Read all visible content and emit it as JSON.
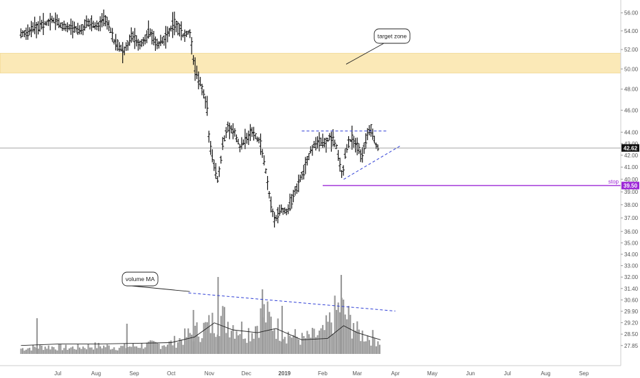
{
  "chart_data": {
    "type": "ohlc",
    "x_axis": {
      "labels": [
        "Jul",
        "Aug",
        "Sep",
        "Oct",
        "Nov",
        "Dec",
        "2019",
        "Feb",
        "Mar",
        "Apr",
        "May",
        "Jun",
        "Jul",
        "Aug",
        "Sep"
      ]
    },
    "y_axis": {
      "scale": "log",
      "ticks": [
        "56.00",
        "54.00",
        "52.00",
        "50.00",
        "48.00",
        "46.00",
        "44.00",
        "43.00",
        "42.00",
        "41.00",
        "40.00",
        "39.00",
        "38.00",
        "37.00",
        "36.00",
        "35.00",
        "34.00",
        "33.00",
        "32.00",
        "31.40",
        "30.60",
        "29.90",
        "29.20",
        "28.50",
        "27.85"
      ],
      "range": [
        27.6,
        57.0
      ]
    },
    "price_series": [
      [
        "2018-06-01",
        53.6
      ],
      [
        "2018-06-15",
        54.4
      ],
      [
        "2018-06-26",
        55.2
      ],
      [
        "2018-07-05",
        54.6
      ],
      [
        "2018-07-12",
        54.2
      ],
      [
        "2018-07-19",
        54.0
      ],
      [
        "2018-07-26",
        55.0
      ],
      [
        "2018-08-02",
        54.5
      ],
      [
        "2018-08-09",
        55.4
      ],
      [
        "2018-08-16",
        52.8
      ],
      [
        "2018-08-23",
        51.8
      ],
      [
        "2018-08-30",
        53.4
      ],
      [
        "2018-09-06",
        52.4
      ],
      [
        "2018-09-13",
        54.0
      ],
      [
        "2018-09-20",
        52.4
      ],
      [
        "2018-09-27",
        53.4
      ],
      [
        "2018-10-04",
        55.0
      ],
      [
        "2018-10-11",
        53.4
      ],
      [
        "2018-10-16",
        54.0
      ],
      [
        "2018-10-20",
        50.0
      ],
      [
        "2018-10-25",
        48.4
      ],
      [
        "2018-10-30",
        46.6
      ],
      [
        "2018-11-01",
        43.0
      ],
      [
        "2018-11-05",
        41.0
      ],
      [
        "2018-11-08",
        39.8
      ],
      [
        "2018-11-12",
        43.0
      ],
      [
        "2018-11-16",
        44.4
      ],
      [
        "2018-11-21",
        44.2
      ],
      [
        "2018-11-26",
        42.6
      ],
      [
        "2018-12-01",
        43.4
      ],
      [
        "2018-12-06",
        44.0
      ],
      [
        "2018-12-12",
        43.2
      ],
      [
        "2018-12-17",
        40.6
      ],
      [
        "2018-12-20",
        38.6
      ],
      [
        "2018-12-24",
        36.8
      ],
      [
        "2018-12-28",
        37.6
      ],
      [
        "2019-01-03",
        37.4
      ],
      [
        "2019-01-08",
        38.6
      ],
      [
        "2019-01-12",
        39.6
      ],
      [
        "2019-01-17",
        40.8
      ],
      [
        "2019-01-22",
        42.4
      ],
      [
        "2019-01-28",
        43.2
      ],
      [
        "2019-02-02",
        43.0
      ],
      [
        "2019-02-07",
        43.6
      ],
      [
        "2019-02-12",
        42.8
      ],
      [
        "2019-02-17",
        40.2
      ],
      [
        "2019-02-20",
        42.6
      ],
      [
        "2019-02-25",
        43.6
      ],
      [
        "2019-03-01",
        42.8
      ],
      [
        "2019-03-05",
        41.8
      ],
      [
        "2019-03-08",
        43.4
      ],
      [
        "2019-03-12",
        44.4
      ],
      [
        "2019-03-16",
        43.0
      ],
      [
        "2019-03-19",
        42.4
      ]
    ],
    "volume_bars": [
      [
        "2018-06-01",
        8
      ],
      [
        "2018-06-20",
        11
      ],
      [
        "2018-07-10",
        9
      ],
      [
        "2018-08-01",
        12
      ],
      [
        "2018-08-20",
        10
      ],
      [
        "2018-09-10",
        13
      ],
      [
        "2018-10-01",
        16
      ],
      [
        "2018-10-18",
        30
      ],
      [
        "2018-11-01",
        42
      ],
      [
        "2018-11-10",
        55
      ],
      [
        "2018-11-25",
        38
      ],
      [
        "2018-12-05",
        33
      ],
      [
        "2018-12-15",
        60
      ],
      [
        "2018-12-28",
        35
      ],
      [
        "2019-01-15",
        22
      ],
      [
        "2019-02-01",
        30
      ],
      [
        "2019-02-15",
        70
      ],
      [
        "2019-03-01",
        32
      ],
      [
        "2019-03-20",
        20
      ]
    ],
    "volume_ma": [
      [
        "2018-06-01",
        12
      ],
      [
        "2018-07-01",
        14
      ],
      [
        "2018-08-01",
        14
      ],
      [
        "2018-09-01",
        15
      ],
      [
        "2018-10-01",
        16
      ],
      [
        "2018-10-20",
        24
      ],
      [
        "2018-11-05",
        44
      ],
      [
        "2018-11-20",
        34
      ],
      [
        "2018-12-10",
        30
      ],
      [
        "2018-12-25",
        36
      ],
      [
        "2019-01-15",
        20
      ],
      [
        "2019-02-05",
        22
      ],
      [
        "2019-02-18",
        40
      ],
      [
        "2019-03-01",
        30
      ],
      [
        "2019-03-20",
        20
      ]
    ],
    "annotations": {
      "target_zone": {
        "low": 49.6,
        "high": 51.6,
        "color": "#fbe9b7"
      },
      "target_label": "target zone",
      "volume_label": "volume MA",
      "stop_label": "stop",
      "stop_value": "39.50",
      "stop_price": 39.5,
      "current_price": "42.62",
      "current_value": 42.62,
      "resistance_price": 44.1,
      "support_line": [
        [
          "2019-02-18",
          40.0
        ],
        [
          "2019-04-05",
          42.8
        ]
      ],
      "volume_trend": [
        [
          "2018-10-15",
          0.74
        ],
        [
          "2019-04-01",
          0.52
        ]
      ]
    },
    "colors": {
      "bars": "#111111",
      "volume": "#9a9a9a",
      "volume_ma": "#222222",
      "trend_line": "#2f3fd6",
      "stop_line": "#9c27d6",
      "current_price_line": "#888888"
    }
  }
}
